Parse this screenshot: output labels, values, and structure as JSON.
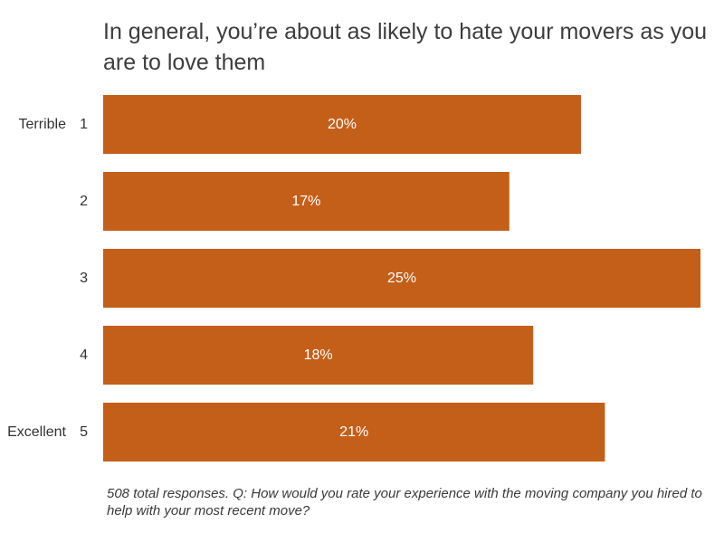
{
  "title": "In general, you’re about as likely to hate your movers as you are to love them",
  "footnote": "508 total responses. Q: How would you rate your experience with the moving company you hired to help with your most recent move?",
  "colors": {
    "bar": "#c45f1a",
    "bar_label": "#ffffff",
    "axis_text": "#333333"
  },
  "chart_data": {
    "type": "bar",
    "orientation": "horizontal",
    "title": "In general, you’re about as likely to hate your movers as you are to love them",
    "categories": [
      "1",
      "2",
      "3",
      "4",
      "5"
    ],
    "category_annotations": [
      "Terrible",
      "",
      "",
      "",
      "Excellent"
    ],
    "values": [
      20,
      17,
      25,
      18,
      21
    ],
    "value_labels": [
      "20%",
      "17%",
      "25%",
      "18%",
      "21%"
    ],
    "unit": "%",
    "xlim": [
      0,
      25
    ],
    "grid": false,
    "legend": "none"
  }
}
